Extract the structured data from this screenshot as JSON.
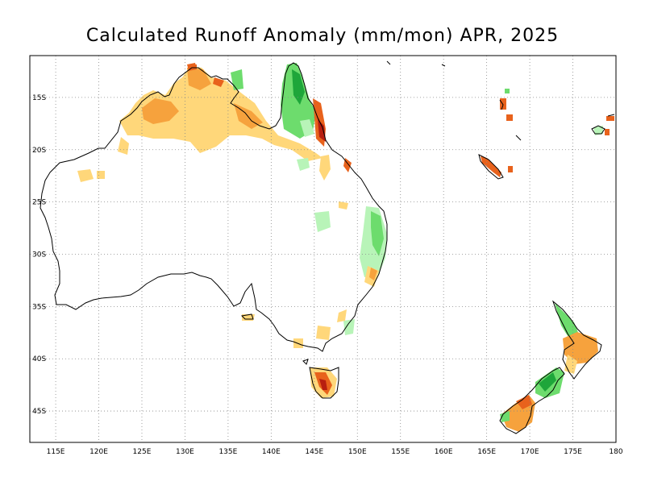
{
  "title": "Calculated Runoff Anomaly (mm/mon) APR, 2025",
  "map": {
    "lon_range": [
      112,
      180
    ],
    "lat_range": [
      -48,
      -11
    ],
    "lon_ticks": [
      {
        "value": 115,
        "label": "115E"
      },
      {
        "value": 120,
        "label": "120E"
      },
      {
        "value": 125,
        "label": "125E"
      },
      {
        "value": 130,
        "label": "130E"
      },
      {
        "value": 135,
        "label": "135E"
      },
      {
        "value": 140,
        "label": "140E"
      },
      {
        "value": 145,
        "label": "145E"
      },
      {
        "value": 150,
        "label": "150E"
      },
      {
        "value": 155,
        "label": "155E"
      },
      {
        "value": 160,
        "label": "160E"
      },
      {
        "value": 165,
        "label": "165E"
      },
      {
        "value": 170,
        "label": "170E"
      },
      {
        "value": 175,
        "label": "175E"
      },
      {
        "value": 180,
        "label": "180"
      }
    ],
    "lat_ticks": [
      {
        "value": -15,
        "label": "15S"
      },
      {
        "value": -20,
        "label": "20S"
      },
      {
        "value": -25,
        "label": "25S"
      },
      {
        "value": -30,
        "label": "30S"
      },
      {
        "value": -35,
        "label": "35S"
      },
      {
        "value": -40,
        "label": "40S"
      },
      {
        "value": -45,
        "label": "45S"
      }
    ],
    "grid": "dotted",
    "colors": {
      "dry_light": "#ffd77a",
      "dry_medium": "#f6a23d",
      "dry_strong": "#e8621c",
      "dry_extreme": "#b81e10",
      "wet_light": "#b8f4b8",
      "wet_medium": "#6ddc6d",
      "wet_strong": "#1ea63a",
      "coastline": "#000000"
    }
  }
}
